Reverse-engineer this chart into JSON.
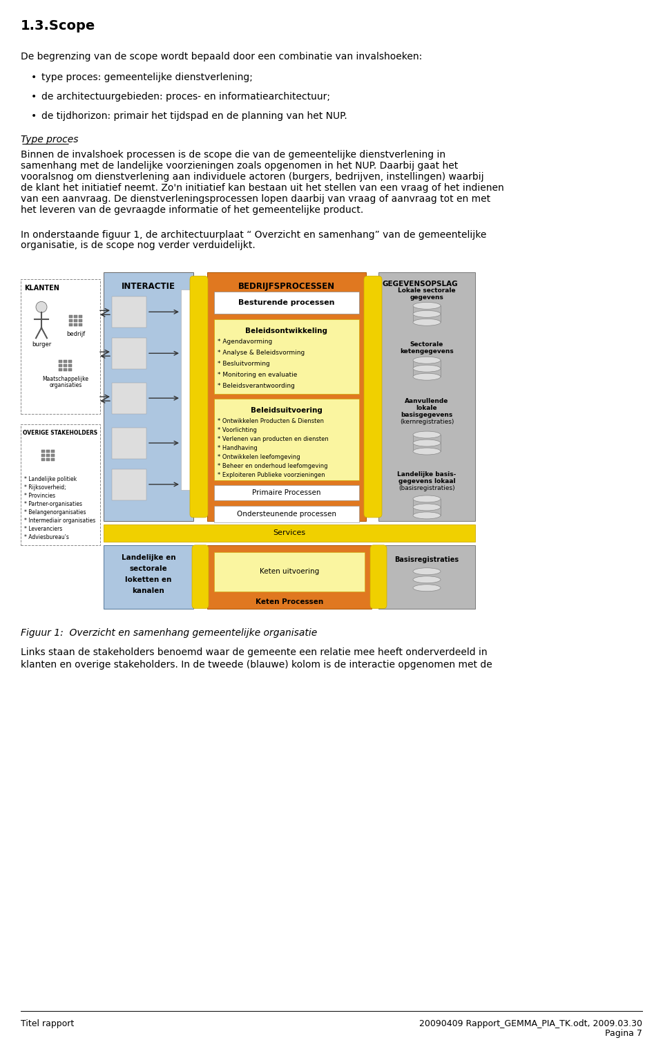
{
  "title": "1.3.Scope",
  "bg_color": "#ffffff",
  "text_color": "#000000",
  "para1": "De begrenzing van de scope wordt bepaald door een combinatie van invalshoeken:",
  "bullets": [
    "type proces: gemeentelijke dienstverlening;",
    "de architectuurgebieden: proces- en informatiearchitectuur;",
    "de tijdhorizon: primair het tijdspad en de planning van het NUP."
  ],
  "subhead": "Type proces",
  "p2_lines": [
    "Binnen de invalshoek processen is de scope die van de gemeentelijke dienstverlening in",
    "samenhang met de landelijke voorzieningen zoals opgenomen in het NUP. Daarbij gaat het",
    "vooralsnog om dienstverlening aan individuele actoren (burgers, bedrijven, instellingen) waarbij",
    "de klant het initiatief neemt. Zo'n initiatief kan bestaan uit het stellen van een vraag of het indienen",
    "van een aanvraag. De dienstverleningsprocessen lopen daarbij van vraag of aanvraag tot en met",
    "het leveren van de gevraagde informatie of het gemeentelijke product."
  ],
  "p3_lines": [
    "In onderstaande figuur 1, de architectuurplaat “ Overzicht en samenhang” van de gemeentelijke",
    "organisatie, is de scope nog verder verduidelijkt."
  ],
  "fig_caption": "Figuur 1:  Overzicht en samenhang gemeentelijke organisatie",
  "p4_lines": [
    "Links staan de stakeholders benoemd waar de gemeente een relatie mee heeft onderverdeeld in",
    "klanten en overige stakeholders. In de tweede (blauwe) kolom is de interactie opgenomen met de"
  ],
  "footer_left": "Titel rapport",
  "footer_right": "20090409 Rapport_GEMMA_PIA_TK.odt, 2009.03.30",
  "footer_page": "Pagina 7",
  "c_blue": "#adc6e0",
  "c_orange": "#e07820",
  "c_yellow_light": "#faf5a0",
  "c_gray": "#b8b8b8",
  "c_white": "#ffffff",
  "c_dark_yellow": "#f0d000",
  "stakeholder_items": [
    "* Landelijke politiek",
    "* Rijksoverheid;",
    "* Provincies",
    "* Partner-organisaties",
    "* Belangenorganisaties",
    "* Intermediair organisaties",
    "* Leveranciers",
    "* Adviesbureau's"
  ],
  "bon_items": [
    "* Agendavorming",
    "* Analyse & Beleidsvorming",
    "* Besluitvorming",
    "* Monitoring en evaluatie",
    "* Beleidsverantwoording"
  ],
  "buit_items": [
    "* Ontwikkelen Producten & Diensten",
    "* Voorlichting",
    "* Verlenen van producten en diensten",
    "* Handhaving",
    "* Ontwikkelen leefomgeving",
    "* Beheer en onderhoud leefomgeving",
    "* Exploiteren Publieke voorzieningen"
  ]
}
